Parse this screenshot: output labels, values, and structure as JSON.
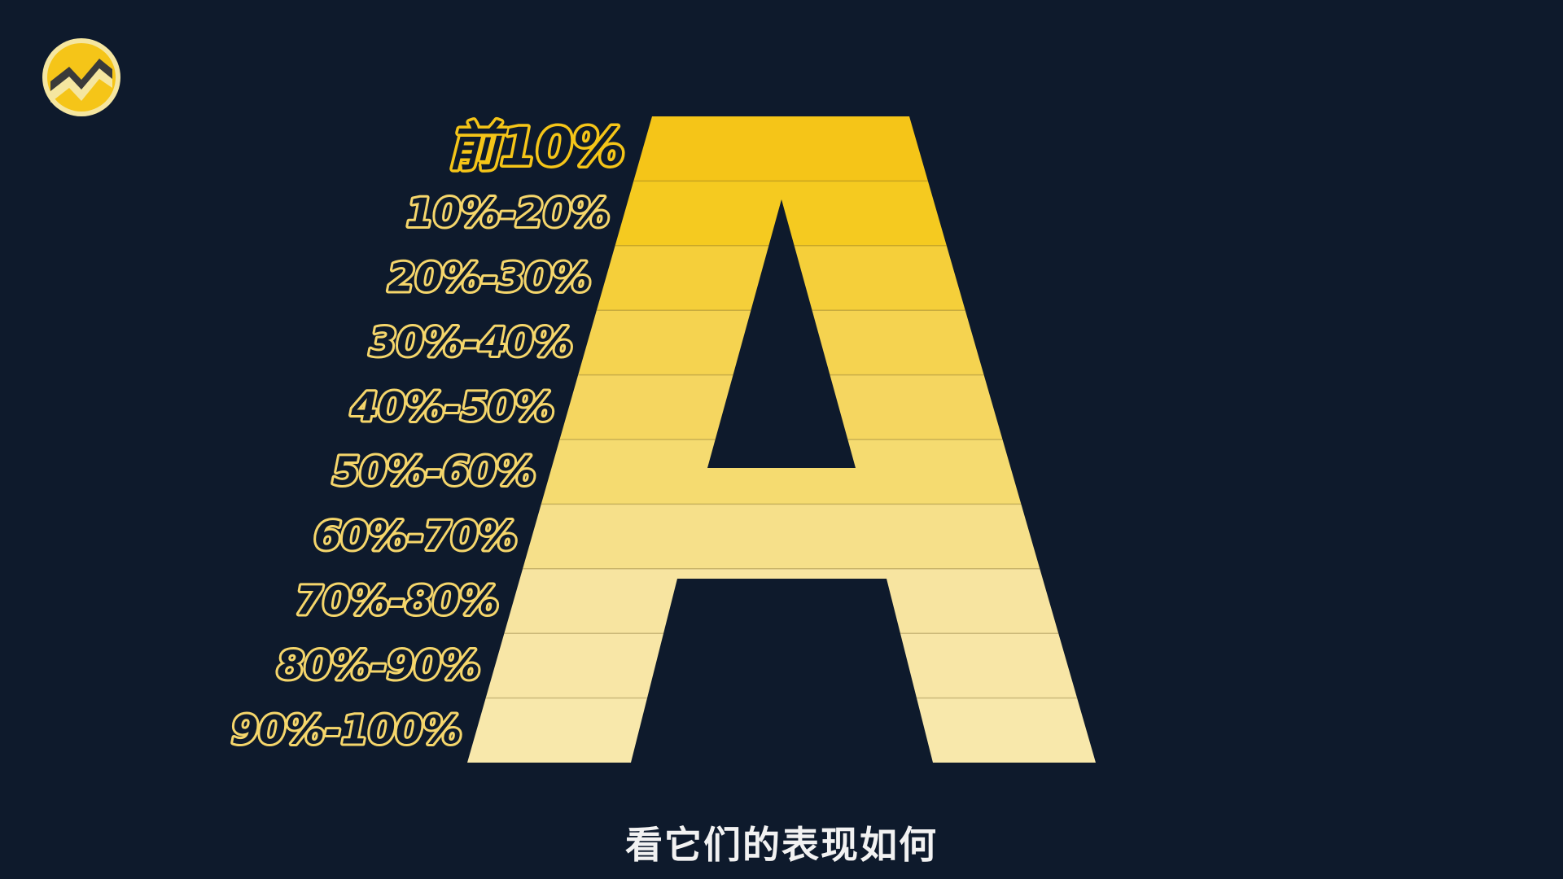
{
  "tiers": [
    {
      "label": "前10%",
      "color": "#f5c518"
    },
    {
      "label": "10%-20%",
      "color": "#f5ca20"
    },
    {
      "label": "20%-30%",
      "color": "#f5cf3a"
    },
    {
      "label": "30%-40%",
      "color": "#f5d350"
    },
    {
      "label": "40%-50%",
      "color": "#f5d660"
    },
    {
      "label": "50%-60%",
      "color": "#f5db70"
    },
    {
      "label": "60%-70%",
      "color": "#f6e08a"
    },
    {
      "label": "70%-80%",
      "color": "#f7e4a0"
    },
    {
      "label": "80%-90%",
      "color": "#f8e6a6"
    },
    {
      "label": "90%-100%",
      "color": "#f8e8ab"
    }
  ],
  "colors": {
    "background": "#0e1a2c",
    "label_stroke": "#f5d66b",
    "top_label_stroke": "#f5c518",
    "logo_ring": "#f5e6a0",
    "logo_fill": "#f5c518",
    "logo_dark": "#3a3a3a"
  },
  "caption": "看它们的表现如何",
  "logo_icon": "zigzag-stock-logo-icon"
}
